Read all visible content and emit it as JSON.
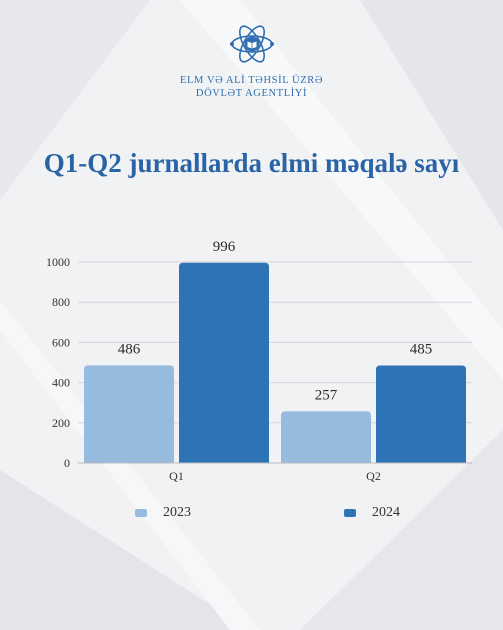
{
  "header": {
    "org_line_1": "ELM VƏ ALİ TƏHSİL ÜZRƏ",
    "org_line_2": "DÖVLƏT AGENTLİYİ",
    "logo_icon": "atom-book-icon"
  },
  "colors": {
    "brand": "#2f6fb0",
    "series_2023": "#97bbdf",
    "series_2024": "#2f73b7"
  },
  "chart_data": {
    "type": "bar",
    "title": "Q1-Q2 jurnallarda elmi məqalə sayı",
    "categories": [
      "Q1",
      "Q2"
    ],
    "series": [
      {
        "name": "2023",
        "values": [
          486,
          257
        ]
      },
      {
        "name": "2024",
        "values": [
          996,
          485
        ]
      }
    ],
    "yticks": [
      0,
      200,
      400,
      600,
      800,
      1000
    ],
    "ylim": [
      0,
      1000
    ],
    "grid": true,
    "legend": "bottom"
  }
}
